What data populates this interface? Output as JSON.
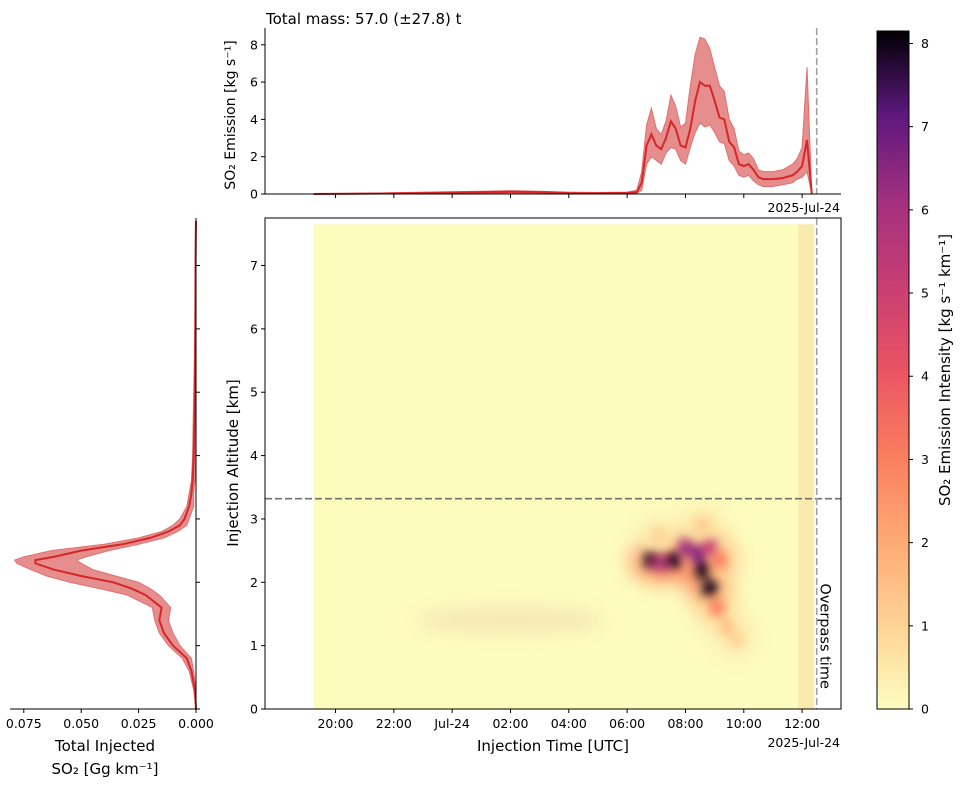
{
  "chart_data": [
    {
      "id": "top",
      "type": "area",
      "title": "Total mass: 57.0 (±27.8) t",
      "ylabel": "SO₂ Emission [kg s⁻¹]",
      "xlim": [
        "2025-07-23 17:35",
        "2025-07-24 13:20"
      ],
      "ylim": [
        0,
        8.9
      ],
      "yticks": [
        "0",
        "2",
        "4",
        "6",
        "8"
      ],
      "corner_label": "2025-Jul-24",
      "series": [
        {
          "x": [
            "2025-07-23 19:15",
            "2025-07-23 21:00",
            "2025-07-23 23:00",
            "2025-07-24 01:00",
            "2025-07-24 02:00",
            "2025-07-24 03:00",
            "2025-07-24 04:00",
            "2025-07-24 05:00",
            "2025-07-24 06:00",
            "2025-07-24 06:20",
            "2025-07-24 06:30",
            "2025-07-24 06:40",
            "2025-07-24 06:50",
            "2025-07-24 07:00",
            "2025-07-24 07:10",
            "2025-07-24 07:20",
            "2025-07-24 07:30",
            "2025-07-24 07:40",
            "2025-07-24 07:50",
            "2025-07-24 08:00",
            "2025-07-24 08:10",
            "2025-07-24 08:20",
            "2025-07-24 08:30",
            "2025-07-24 08:40",
            "2025-07-24 08:50",
            "2025-07-24 09:00",
            "2025-07-24 09:10",
            "2025-07-24 09:20",
            "2025-07-24 09:30",
            "2025-07-24 09:40",
            "2025-07-24 09:50",
            "2025-07-24 10:00",
            "2025-07-24 10:10",
            "2025-07-24 10:20",
            "2025-07-24 10:30",
            "2025-07-24 10:40",
            "2025-07-24 10:50",
            "2025-07-24 11:00",
            "2025-07-24 11:20",
            "2025-07-24 11:40",
            "2025-07-24 11:50",
            "2025-07-24 12:00",
            "2025-07-24 12:10",
            "2025-07-24 12:20"
          ],
          "mean": [
            0,
            0.02,
            0.05,
            0.1,
            0.12,
            0.1,
            0.05,
            0.04,
            0.06,
            0.1,
            0.6,
            2.6,
            3.2,
            2.6,
            2.4,
            3.0,
            3.9,
            3.5,
            2.6,
            2.5,
            3.5,
            5.0,
            6.0,
            5.8,
            5.8,
            5.0,
            4.1,
            4.0,
            2.8,
            2.5,
            1.6,
            1.5,
            1.6,
            1.3,
            0.9,
            0.8,
            0.8,
            0.8,
            0.85,
            1.0,
            1.2,
            1.5,
            2.9,
            0
          ],
          "upper": [
            0,
            0.04,
            0.1,
            0.15,
            0.18,
            0.15,
            0.1,
            0.08,
            0.1,
            0.2,
            1.2,
            3.7,
            4.6,
            3.5,
            3.2,
            3.9,
            5.3,
            4.7,
            3.6,
            3.8,
            5.8,
            7.5,
            8.4,
            8.3,
            7.8,
            6.8,
            5.8,
            5.5,
            4.0,
            3.5,
            2.3,
            2.1,
            2.2,
            1.9,
            1.3,
            1.2,
            1.2,
            1.2,
            1.3,
            1.6,
            1.9,
            2.5,
            6.8,
            0
          ],
          "lower": [
            0,
            0,
            0.02,
            0.05,
            0.06,
            0.05,
            0.02,
            0.01,
            0.02,
            0.05,
            0.2,
            1.6,
            2.0,
            1.8,
            1.6,
            2.2,
            2.5,
            2.4,
            1.8,
            1.6,
            2.5,
            3.3,
            3.8,
            3.6,
            3.7,
            3.3,
            2.8,
            2.7,
            1.8,
            1.5,
            1.0,
            0.9,
            1.0,
            0.7,
            0.5,
            0.4,
            0.4,
            0.4,
            0.5,
            0.6,
            0.8,
            0.9,
            1.2,
            0
          ]
        }
      ],
      "vline": "2025-07-24 12:30"
    },
    {
      "id": "main",
      "type": "heatmap",
      "xlabel": "Injection Time [UTC]",
      "ylabel": "Injection Altitude [km]",
      "xlim": [
        "2025-07-23 17:35",
        "2025-07-24 13:20"
      ],
      "ylim": [
        0,
        7.75
      ],
      "xticks": [
        {
          "t": "2025-07-23 20:00",
          "label": "20:00"
        },
        {
          "t": "2025-07-23 22:00",
          "label": "22:00"
        },
        {
          "t": "2025-07-24 00:00",
          "label": "Jul-24"
        },
        {
          "t": "2025-07-24 02:00",
          "label": "02:00"
        },
        {
          "t": "2025-07-24 04:00",
          "label": "04:00"
        },
        {
          "t": "2025-07-24 06:00",
          "label": "06:00"
        },
        {
          "t": "2025-07-24 08:00",
          "label": "08:00"
        },
        {
          "t": "2025-07-24 10:00",
          "label": "10:00"
        },
        {
          "t": "2025-07-24 12:00",
          "label": "12:00"
        }
      ],
      "yticks": [
        "0",
        "1",
        "2",
        "3",
        "4",
        "5",
        "6",
        "7"
      ],
      "corner_label": "2025-Jul-24",
      "data_extent": {
        "t0": "2025-07-23 19:15",
        "t1": "2025-07-24 12:25",
        "z0": 0,
        "z1": 7.65
      },
      "hline_km": 3.32,
      "vline": "2025-07-24 12:30",
      "vline_label": "Overpass time",
      "hotspots": [
        {
          "t": "2025-07-24 06:50",
          "z": 2.35,
          "v": 8.0
        },
        {
          "t": "2025-07-24 07:10",
          "z": 2.3,
          "v": 5.5
        },
        {
          "t": "2025-07-24 07:35",
          "z": 2.35,
          "v": 8.0
        },
        {
          "t": "2025-07-24 08:00",
          "z": 2.55,
          "v": 6.0
        },
        {
          "t": "2025-07-24 08:25",
          "z": 2.45,
          "v": 6.5
        },
        {
          "t": "2025-07-24 08:35",
          "z": 2.2,
          "v": 8.0
        },
        {
          "t": "2025-07-24 08:50",
          "z": 1.9,
          "v": 8.0
        },
        {
          "t": "2025-07-24 08:50",
          "z": 2.55,
          "v": 5.0
        },
        {
          "t": "2025-07-24 09:10",
          "z": 2.35,
          "v": 3.0
        },
        {
          "t": "2025-07-24 09:05",
          "z": 1.6,
          "v": 3.0
        },
        {
          "t": "2025-07-24 09:25",
          "z": 1.3,
          "v": 1.5
        },
        {
          "t": "2025-07-24 09:45",
          "z": 1.1,
          "v": 1.0
        },
        {
          "t": "2025-07-24 08:35",
          "z": 2.9,
          "v": 1.2
        },
        {
          "t": "2025-07-24 07:05",
          "z": 2.75,
          "v": 1.0
        },
        {
          "t": "2025-07-24 02:00",
          "z": 1.4,
          "v": 0.15
        }
      ]
    },
    {
      "id": "left",
      "type": "area",
      "xlabel": "Total Injected",
      "xlabel2": "SO₂ [Gg km⁻¹]",
      "xlim": [
        0.081,
        0
      ],
      "ylim": [
        0,
        7.75
      ],
      "xticks": [
        "0.075",
        "0.050",
        "0.025",
        "0.000"
      ],
      "series": [
        {
          "z": [
            0,
            0.3,
            0.6,
            0.8,
            1.0,
            1.2,
            1.4,
            1.6,
            1.8,
            1.9,
            2.0,
            2.1,
            2.2,
            2.3,
            2.35,
            2.4,
            2.5,
            2.6,
            2.7,
            2.8,
            2.9,
            3.0,
            3.2,
            3.4,
            3.6,
            4.0,
            5.0,
            6.0,
            7.0,
            7.5,
            7.7
          ],
          "mean": [
            0,
            0.0005,
            0.002,
            0.004,
            0.01,
            0.014,
            0.016,
            0.015,
            0.022,
            0.028,
            0.036,
            0.05,
            0.062,
            0.07,
            0.07,
            0.062,
            0.05,
            0.032,
            0.02,
            0.012,
            0.007,
            0.005,
            0.003,
            0.002,
            0.0015,
            0.001,
            0.0005,
            0.0003,
            0.0002,
            0.0001,
            0
          ],
          "upper": [
            0,
            0.001,
            0.003,
            0.006,
            0.012,
            0.016,
            0.018,
            0.019,
            0.03,
            0.042,
            0.055,
            0.065,
            0.072,
            0.078,
            0.079,
            0.075,
            0.063,
            0.04,
            0.025,
            0.015,
            0.01,
            0.007,
            0.004,
            0.003,
            0.002,
            0.0015,
            0.001,
            0.0005,
            0.0003,
            0.0002,
            0
          ],
          "lower": [
            0,
            0,
            0.001,
            0.002,
            0.007,
            0.01,
            0.012,
            0.011,
            0.016,
            0.02,
            0.025,
            0.035,
            0.045,
            0.05,
            0.052,
            0.048,
            0.038,
            0.025,
            0.014,
            0.008,
            0.004,
            0.003,
            0.001,
            0.001,
            0.0005,
            0.0003,
            0.0002,
            0.0001,
            0,
            0,
            0
          ]
        }
      ]
    },
    {
      "id": "colorbar",
      "type": "heatmap",
      "label": "SO₂ Emission Intensity [kg s⁻¹ km⁻¹]",
      "range": [
        0,
        8.15
      ],
      "ticks": [
        "0",
        "1",
        "2",
        "3",
        "4",
        "5",
        "6",
        "7",
        "8"
      ],
      "colormap": "magma_r"
    }
  ],
  "colors": {
    "line": "#d62728",
    "band": "#e07070",
    "heat_bg": "#fcfcbd",
    "vline": "#a0a0a0",
    "hline": "#707070",
    "overpass_text": "#8c8c8c"
  }
}
